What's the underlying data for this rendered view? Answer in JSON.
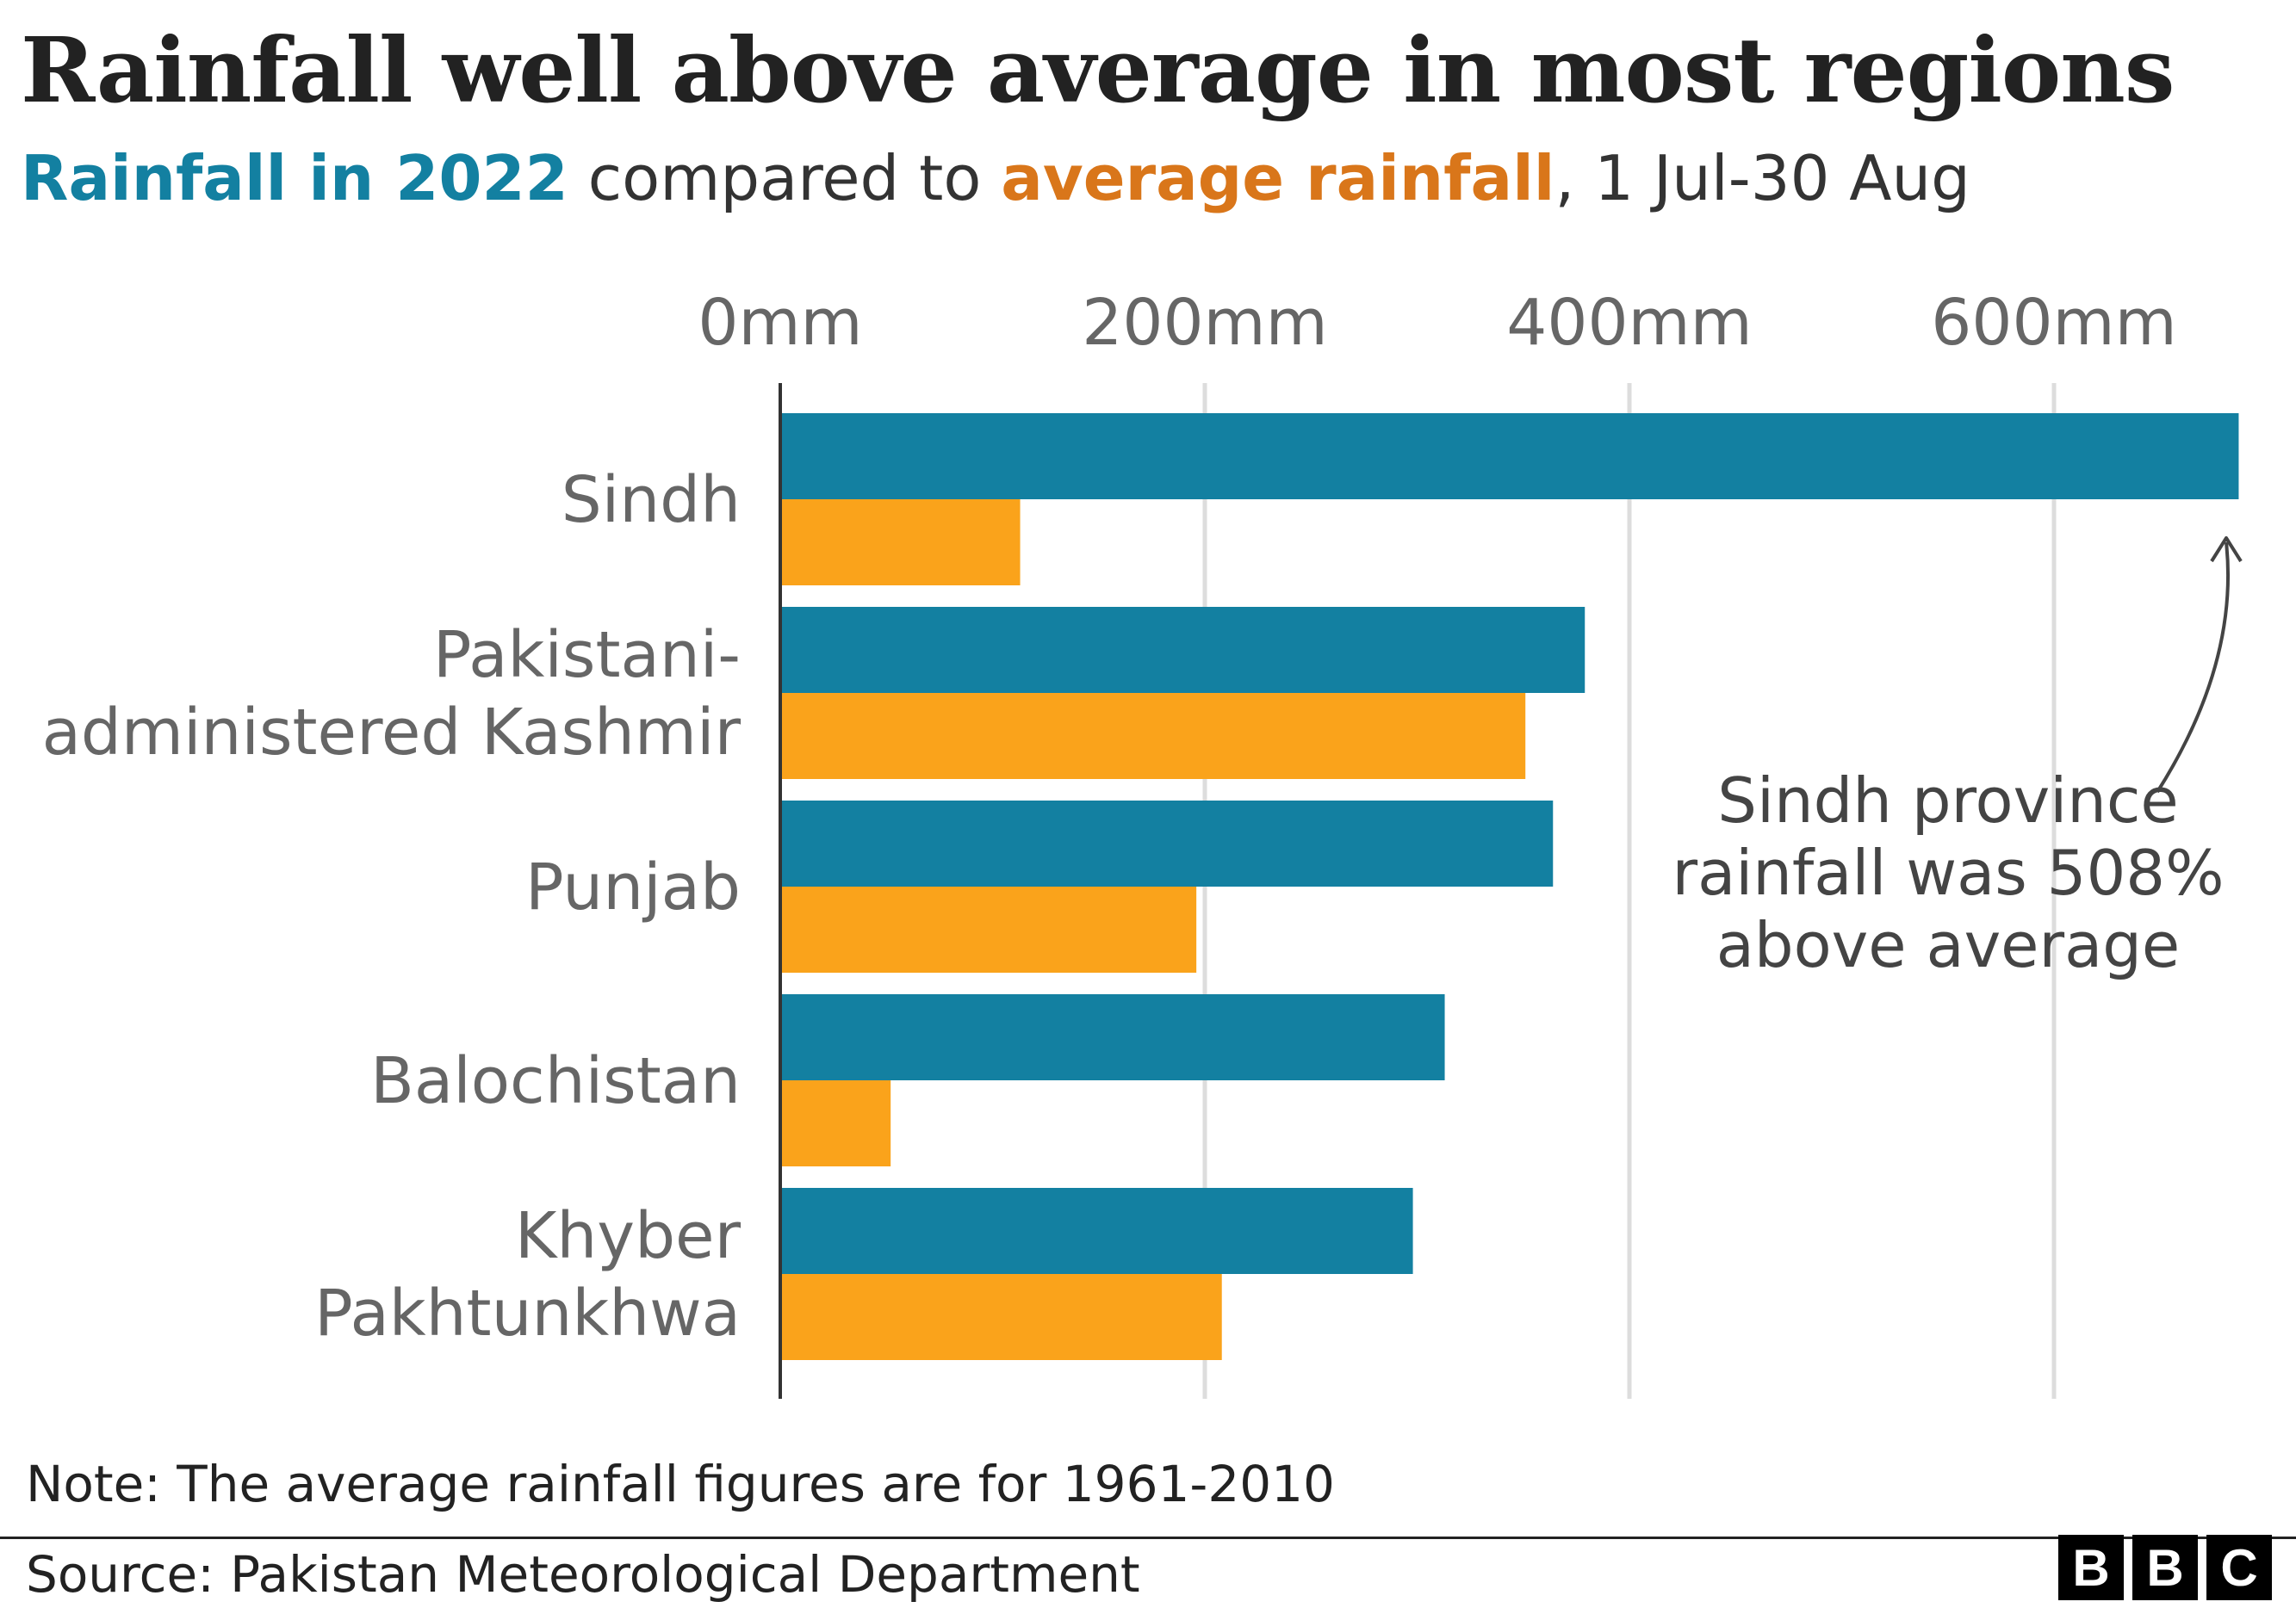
{
  "title": "Rainfall well above average in most regions",
  "subtitle": {
    "part1": "Rainfall in 2022",
    "part2": " compared to ",
    "part3": "average rainfall",
    "part4": ", 1 Jul-30 Aug"
  },
  "colors": {
    "series_2022": "#1380A1",
    "series_average": "#FAA31B",
    "grid": "#DDDDDD",
    "axis": "#333333",
    "label_text": "#666666"
  },
  "chart_data": {
    "type": "bar",
    "orientation": "horizontal",
    "categories": [
      "Sindh",
      "Pakistani-\nadministered Kashmir",
      "Punjab",
      "Balochistan",
      "Khyber\nPakhtunkhwa"
    ],
    "series": [
      {
        "name": "Rainfall in 2022",
        "values": [
          687,
          379,
          364,
          313,
          298
        ]
      },
      {
        "name": "average rainfall",
        "values": [
          113,
          351,
          196,
          52,
          208
        ]
      }
    ],
    "xlim": [
      0,
      690
    ],
    "x_ticks": [
      0,
      200,
      400,
      600
    ],
    "x_tick_labels": [
      "0mm",
      "200mm",
      "400mm",
      "600mm"
    ],
    "grid": true,
    "annotation": {
      "text": [
        "Sindh province",
        "rainfall was 508%",
        "above average"
      ],
      "points_to": "Sindh"
    }
  },
  "note": "Note: The average rainfall figures are for 1961-2010",
  "source": "Source: Pakistan Meteorological Department",
  "logo": [
    "B",
    "B",
    "C"
  ]
}
